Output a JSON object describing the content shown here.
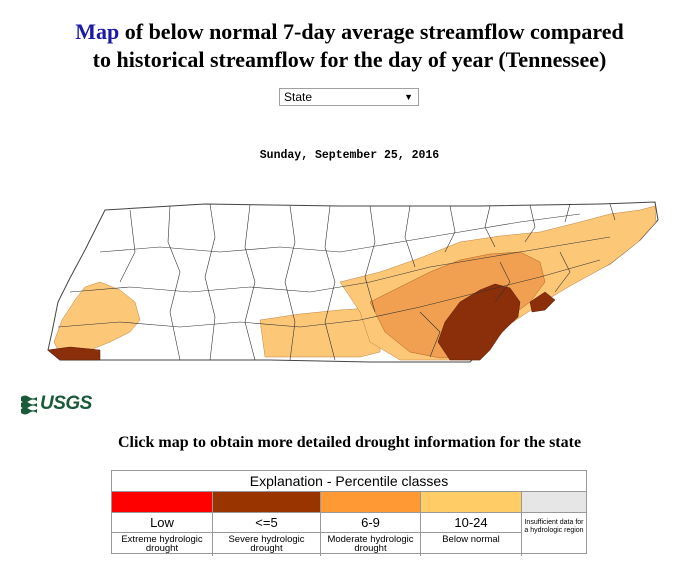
{
  "header": {
    "title_link": "Map",
    "title_rest_line1": " of below normal 7-day average streamflow compared",
    "title_line2": "to historical streamflow for the day of year (Tennessee)"
  },
  "state_select": {
    "value": "State"
  },
  "date": "Sunday, September 25, 2016",
  "logo": {
    "text": "USGS",
    "color": "#1a5a3a"
  },
  "instruction": "Click map to obtain more detailed drought information for the state",
  "legend": {
    "title": "Explanation - Percentile classes",
    "classes": [
      {
        "color": "#ff0000",
        "label": "Low",
        "description": "Extreme hydrologic drought"
      },
      {
        "color": "#993300",
        "label": "<=5",
        "description": "Severe hydrologic drought"
      },
      {
        "color": "#ff9933",
        "label": "6-9",
        "description": "Moderate hydrologic drought"
      },
      {
        "color": "#ffcc66",
        "label": "10-24",
        "description": "Below normal"
      },
      {
        "color": "#e6e6e6",
        "label": "",
        "description": "Insufficient data for a hydrologic region"
      }
    ]
  },
  "map_colors": {
    "severe": "#8b2f0a",
    "moderate": "#f0a050",
    "below_normal": "#fcc878"
  }
}
